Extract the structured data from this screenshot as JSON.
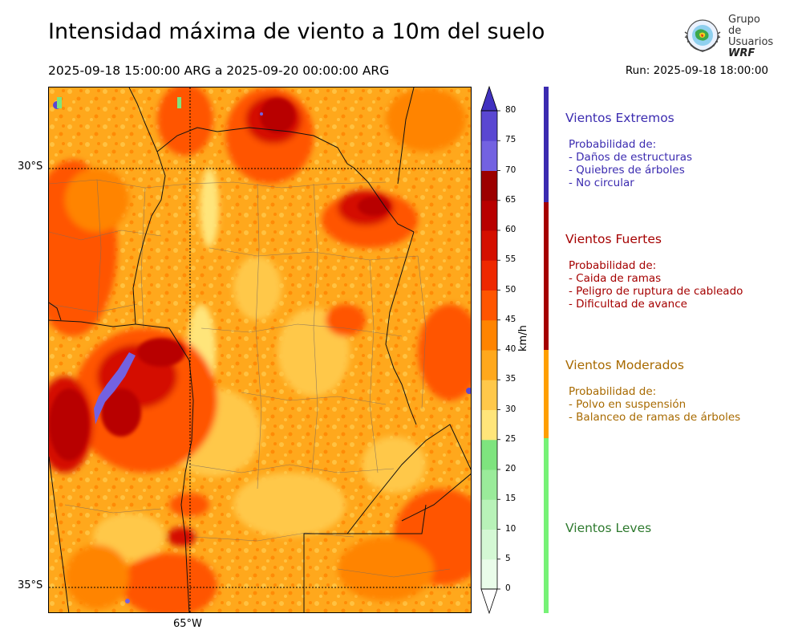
{
  "header": {
    "title": "Intensidad máxima de viento a 10m del suelo",
    "period": "2025-09-18 15:00:00 ARG  a  2025-09-20 00:00:00 ARG",
    "run": "Run: 2025-09-18 18:00:00"
  },
  "logo": {
    "line1": "Grupo de",
    "line2": "Usuarios",
    "line3": "WRF"
  },
  "map": {
    "lat_labels": [
      "30°S",
      "35°S"
    ],
    "lon_labels": [
      "65°W"
    ]
  },
  "colorbar": {
    "unit": "km/h",
    "ticks": [
      "80",
      "75",
      "70",
      "65",
      "60",
      "55",
      "50",
      "45",
      "40",
      "35",
      "30",
      "25",
      "20",
      "15",
      "10",
      "5",
      "0"
    ],
    "colors": [
      "#e9fce9",
      "#d4f8d4",
      "#b8f2b8",
      "#9aeb9a",
      "#7ee47e",
      "#ffe57a",
      "#ffc84a",
      "#ffa81c",
      "#ff8400",
      "#ff5500",
      "#ee2800",
      "#d40f00",
      "#b80000",
      "#9c0000",
      "#7362e1",
      "#5a47d2",
      "#4131c0"
    ]
  },
  "legend": {
    "categories": [
      {
        "title": "Vientos Extremos",
        "color": "#3b2bb0",
        "bar": "#3b2bb0",
        "head": "Probabilidad de:",
        "items": [
          "- Daños de estructuras",
          "- Quiebres de árboles",
          "- No circular"
        ]
      },
      {
        "title": "Vientos Fuertes",
        "color": "#a50000",
        "bar": "#a50000",
        "head": "Probabilidad de:",
        "items": [
          "- Caida de ramas",
          "- Peligro de ruptura de cableado",
          "- Dificultad de avance"
        ]
      },
      {
        "title": "Vientos Moderados",
        "color": "#a86a00",
        "bar": "#ff9f00",
        "head": "Probabilidad de:",
        "items": [
          "- Polvo en suspensión",
          "- Balanceo de ramas de árboles"
        ]
      },
      {
        "title": "Vientos Leves",
        "color": "#2e7a2e",
        "bar": "#77f277",
        "head": "",
        "items": []
      }
    ]
  }
}
